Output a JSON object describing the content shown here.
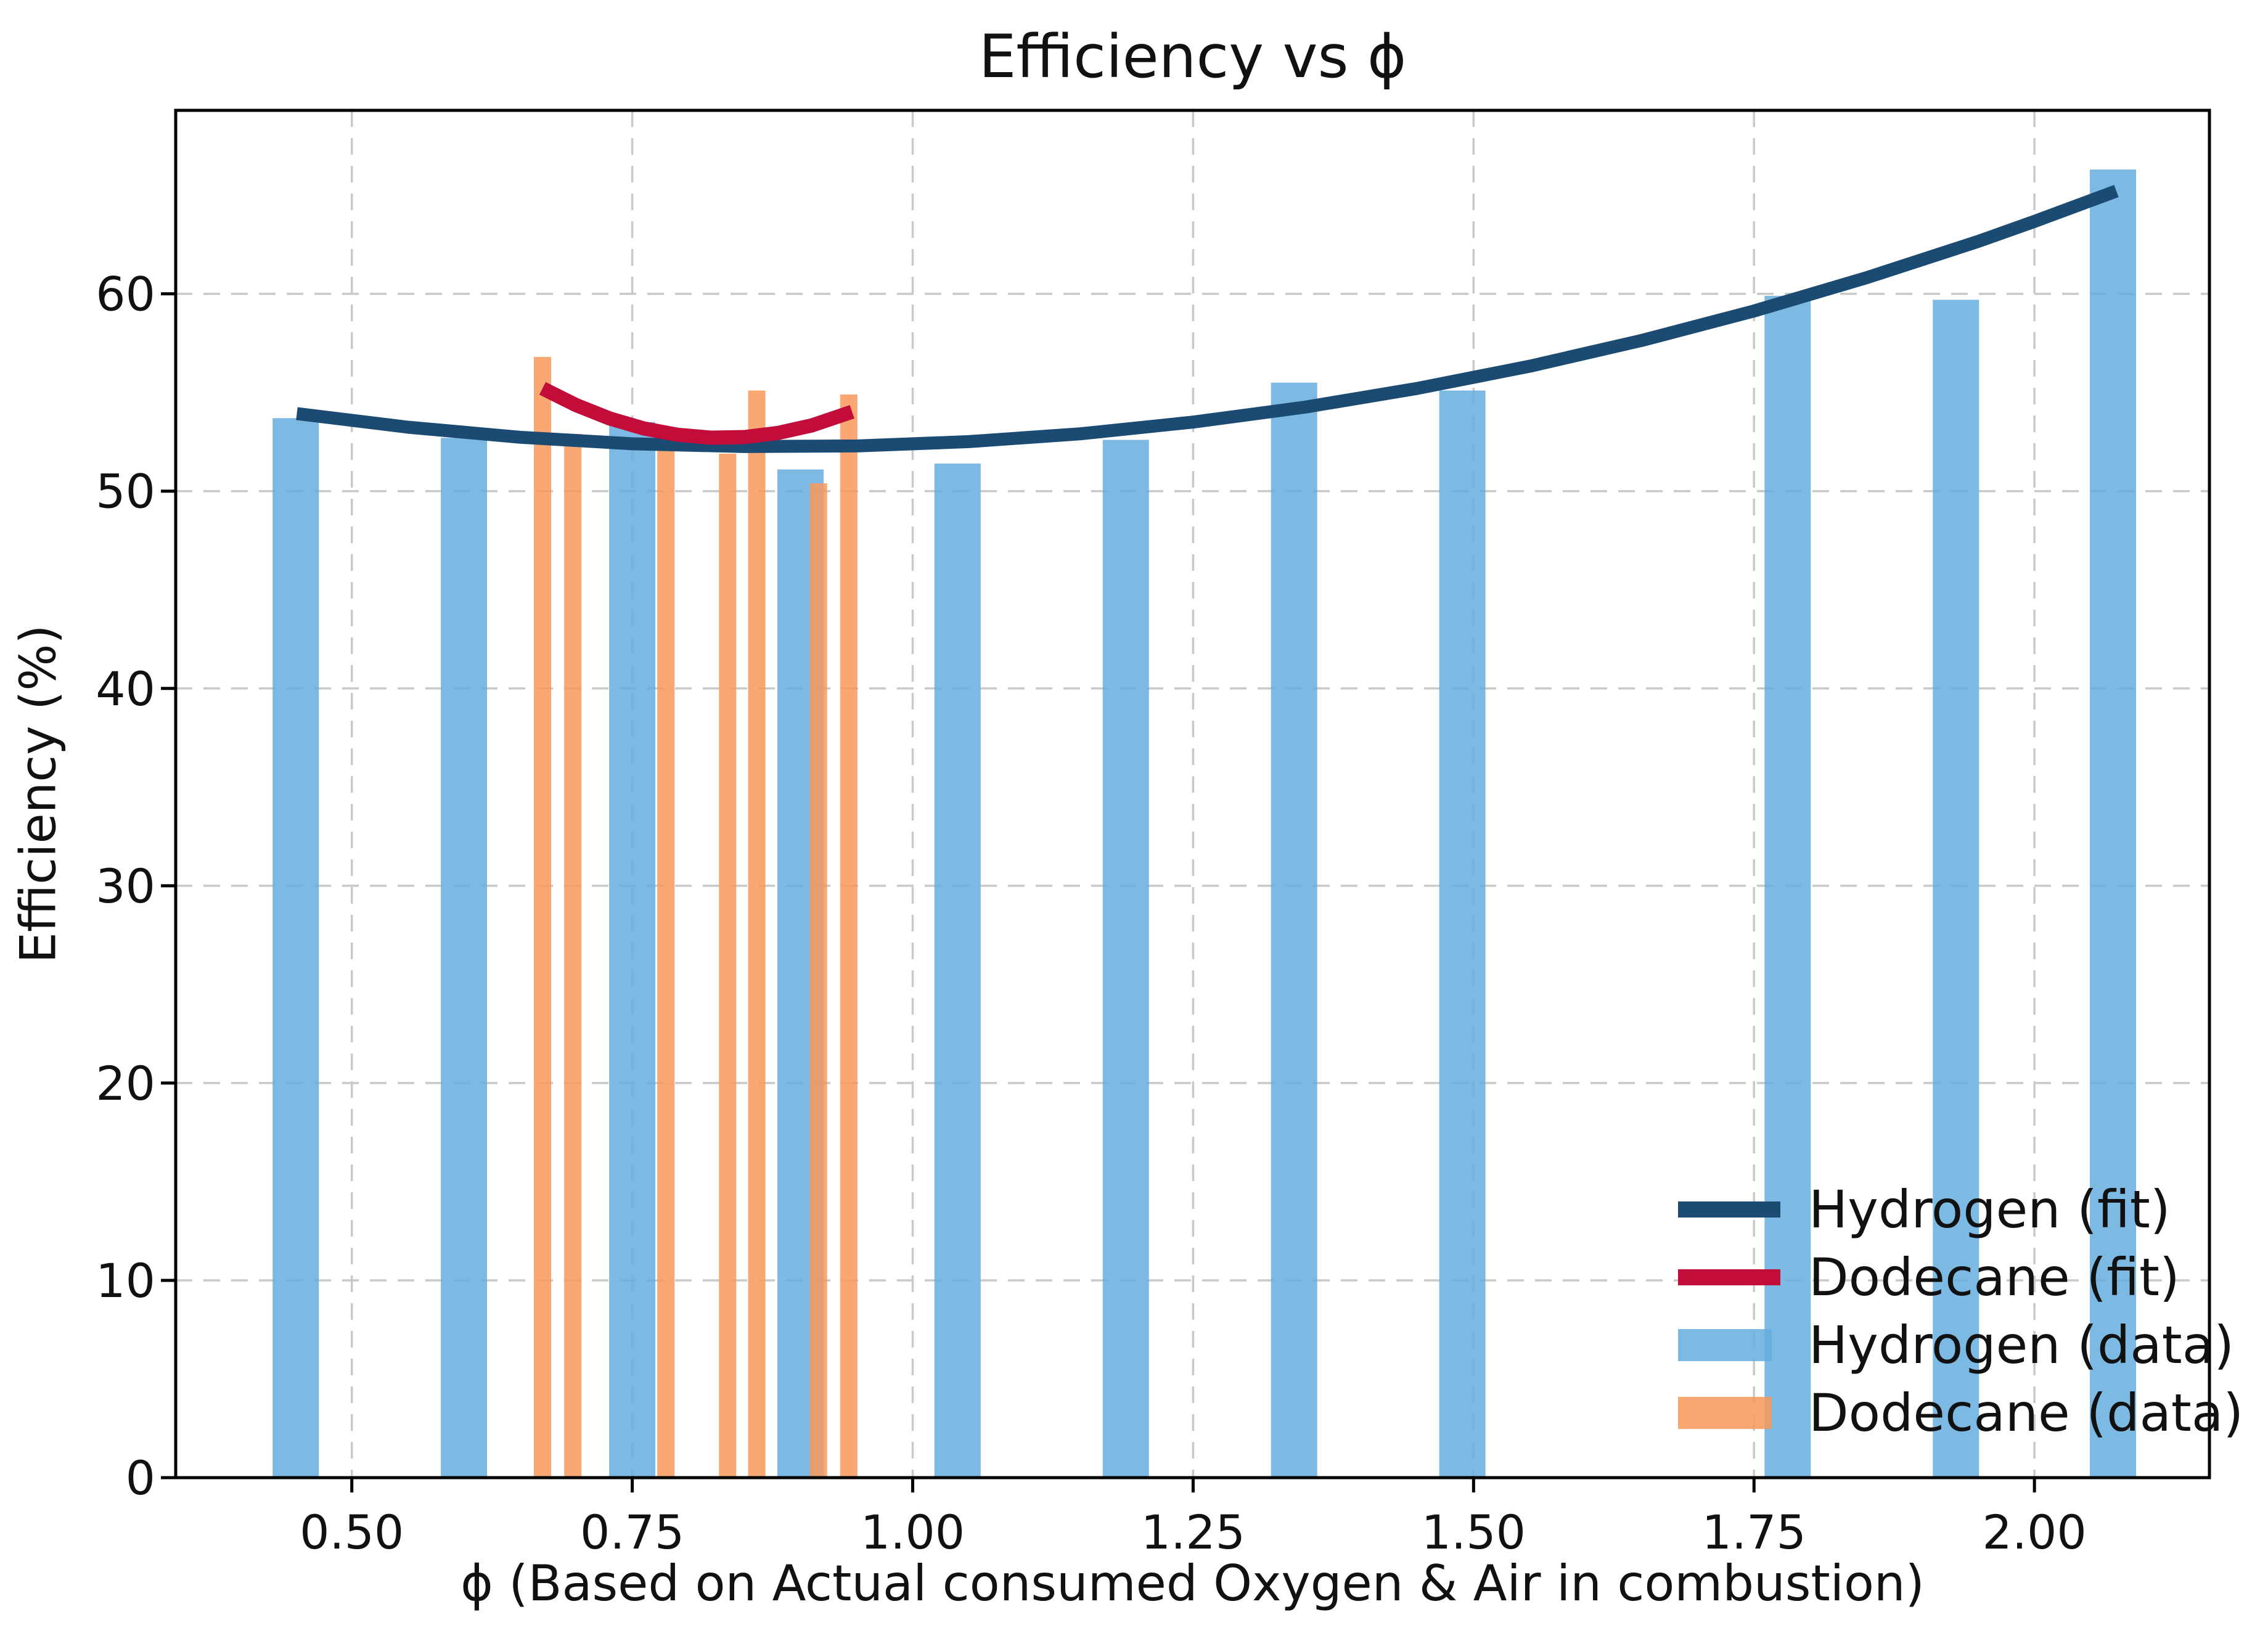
{
  "chart_data": {
    "type": "bar",
    "title": "Efficiency vs ϕ",
    "xlabel": "ϕ (Based on Actual consumed Oxygen & Air in combustion)",
    "ylabel": "Efficiency (%)",
    "xlim": [
      0.343,
      2.156
    ],
    "ylim": [
      0,
      69.3
    ],
    "grid": true,
    "grid_color": "#c9c9c9",
    "spine_color": "#000000",
    "x_ticks": [
      {
        "value": 0.5,
        "label": "0.50"
      },
      {
        "value": 0.75,
        "label": "0.75"
      },
      {
        "value": 1.0,
        "label": "1.00"
      },
      {
        "value": 1.25,
        "label": "1.25"
      },
      {
        "value": 1.5,
        "label": "1.50"
      },
      {
        "value": 1.75,
        "label": "1.75"
      },
      {
        "value": 2.0,
        "label": "2.00"
      }
    ],
    "y_ticks": [
      {
        "value": 0,
        "label": "0"
      },
      {
        "value": 10,
        "label": "10"
      },
      {
        "value": 20,
        "label": "20"
      },
      {
        "value": 30,
        "label": "30"
      },
      {
        "value": 40,
        "label": "40"
      },
      {
        "value": 50,
        "label": "50"
      },
      {
        "value": 60,
        "label": "60"
      }
    ],
    "series": [
      {
        "name": "Hydrogen (data)",
        "kind": "bar",
        "color": "#65ADDE",
        "opacity": 0.85,
        "bar_width_x": 0.0412,
        "points": [
          {
            "x": 0.45,
            "y": 53.7
          },
          {
            "x": 0.6,
            "y": 52.7
          },
          {
            "x": 0.75,
            "y": 53.5
          },
          {
            "x": 0.9,
            "y": 51.1
          },
          {
            "x": 1.04,
            "y": 51.4
          },
          {
            "x": 1.19,
            "y": 52.6
          },
          {
            "x": 1.34,
            "y": 55.5
          },
          {
            "x": 1.49,
            "y": 55.1
          },
          {
            "x": 1.78,
            "y": 59.9
          },
          {
            "x": 1.93,
            "y": 59.7
          },
          {
            "x": 2.07,
            "y": 66.3
          }
        ]
      },
      {
        "name": "Dodecane (data)",
        "kind": "bar",
        "color": "#F8995B",
        "opacity": 0.85,
        "bar_width_x": 0.0154,
        "points": [
          {
            "x": 0.67,
            "y": 56.8
          },
          {
            "x": 0.697,
            "y": 52.9
          },
          {
            "x": 0.78,
            "y": 52.7
          },
          {
            "x": 0.835,
            "y": 51.9
          },
          {
            "x": 0.861,
            "y": 55.1
          },
          {
            "x": 0.916,
            "y": 50.4
          },
          {
            "x": 0.943,
            "y": 54.9
          }
        ]
      },
      {
        "name": "Hydrogen (fit)",
        "kind": "line",
        "color": "#1B4A73",
        "stroke_width": 21,
        "points": [
          {
            "x": 0.451,
            "y": 53.93
          },
          {
            "x": 0.55,
            "y": 53.24
          },
          {
            "x": 0.65,
            "y": 52.73
          },
          {
            "x": 0.75,
            "y": 52.4
          },
          {
            "x": 0.85,
            "y": 52.26
          },
          {
            "x": 0.95,
            "y": 52.29
          },
          {
            "x": 1.05,
            "y": 52.51
          },
          {
            "x": 1.15,
            "y": 52.91
          },
          {
            "x": 1.25,
            "y": 53.5
          },
          {
            "x": 1.35,
            "y": 54.26
          },
          {
            "x": 1.45,
            "y": 55.21
          },
          {
            "x": 1.55,
            "y": 56.33
          },
          {
            "x": 1.65,
            "y": 57.64
          },
          {
            "x": 1.75,
            "y": 59.13
          },
          {
            "x": 1.85,
            "y": 60.81
          },
          {
            "x": 1.95,
            "y": 62.66
          },
          {
            "x": 2.0,
            "y": 63.67
          },
          {
            "x": 2.073,
            "y": 65.21
          }
        ]
      },
      {
        "name": "Dodecane (fit)",
        "kind": "line",
        "color": "#C20D3B",
        "stroke_width": 23,
        "points": [
          {
            "x": 0.67,
            "y": 55.21
          },
          {
            "x": 0.7,
            "y": 54.36
          },
          {
            "x": 0.73,
            "y": 53.68
          },
          {
            "x": 0.76,
            "y": 53.18
          },
          {
            "x": 0.79,
            "y": 52.86
          },
          {
            "x": 0.82,
            "y": 52.71
          },
          {
            "x": 0.85,
            "y": 52.74
          },
          {
            "x": 0.88,
            "y": 52.95
          },
          {
            "x": 0.91,
            "y": 53.33
          },
          {
            "x": 0.946,
            "y": 54.02
          }
        ]
      }
    ],
    "legend": {
      "position": "lower right",
      "items": [
        {
          "label": "Hydrogen (fit)",
          "swatch": "line",
          "color": "#1B4A73"
        },
        {
          "label": "Dodecane (fit)",
          "swatch": "line",
          "color": "#C20D3B"
        },
        {
          "label": "Hydrogen (data)",
          "swatch": "patch",
          "color": "#65ADDE"
        },
        {
          "label": "Dodecane (data)",
          "swatch": "patch",
          "color": "#F8995B"
        }
      ]
    }
  }
}
